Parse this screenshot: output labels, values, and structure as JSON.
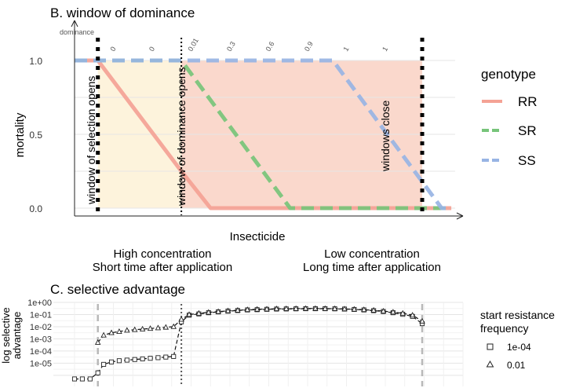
{
  "chart_data": [
    {
      "panel_title": "B. window of dominance",
      "type": "line",
      "x": [
        0,
        0.06,
        0.175,
        0.25,
        0.37,
        0.49,
        0.61,
        0.73,
        0.85,
        0.97
      ],
      "xlabel": "Insecticide",
      "ylabel": "mortality",
      "xlim": [
        0,
        1
      ],
      "ylim": [
        0,
        1
      ],
      "x_ticks_shown": false,
      "y_ticks": [
        "0.0",
        "0.5",
        "1.0"
      ],
      "y_tick_values": [
        0,
        0.5,
        1
      ],
      "x_annotations": [
        {
          "text": "High concentration",
          "x": 0.23,
          "line": 1
        },
        {
          "text": "Short time after application",
          "x": 0.23,
          "line": 2
        },
        {
          "text": "Low concentration",
          "x": 0.78,
          "line": 1
        },
        {
          "text": "Long time after application",
          "x": 0.78,
          "line": 2
        }
      ],
      "dominance_label": "dominance",
      "dominance_values": [
        {
          "x": 0.11,
          "text": "0"
        },
        {
          "x": 0.21,
          "text": "0"
        },
        {
          "x": 0.31,
          "text": "0.01"
        },
        {
          "x": 0.41,
          "text": "0.3"
        },
        {
          "x": 0.51,
          "text": "0.6"
        },
        {
          "x": 0.61,
          "text": "0.9"
        },
        {
          "x": 0.71,
          "text": "1"
        },
        {
          "x": 0.81,
          "text": "1"
        }
      ],
      "window_lines": [
        {
          "x": 0.06,
          "style": "dashed-thick",
          "label": "window of selection opens"
        },
        {
          "x": 0.275,
          "style": "dotted",
          "label": "window of dominance opens"
        },
        {
          "x": 0.895,
          "style": "dashed-thick",
          "label": "windows close"
        }
      ],
      "shaded_regions": [
        {
          "x0": 0.06,
          "x1": 0.275,
          "color": "#fdf3dc"
        },
        {
          "x0": 0.275,
          "x1": 0.895,
          "color": "#fad8cc"
        }
      ],
      "legend_title": "genotype",
      "legend_position": "right",
      "series": [
        {
          "name": "RR",
          "color": "#f4a295",
          "dash": "solid",
          "points": [
            [
              0.0,
              1.0
            ],
            [
              0.06,
              1.0
            ],
            [
              0.275,
              0.25
            ],
            [
              0.35,
              0.0
            ],
            [
              0.97,
              0.0
            ]
          ]
        },
        {
          "name": "SR",
          "color": "#77c47a",
          "dash": "dashed",
          "points": [
            [
              0.0,
              1.0
            ],
            [
              0.275,
              1.0
            ],
            [
              0.555,
              0.0
            ],
            [
              0.97,
              0.0
            ]
          ]
        },
        {
          "name": "SS",
          "color": "#98b4e4",
          "dash": "dashed",
          "points": [
            [
              0.0,
              1.0
            ],
            [
              0.665,
              1.0
            ],
            [
              0.945,
              0.0
            ],
            [
              0.97,
              0.0
            ]
          ]
        }
      ]
    },
    {
      "panel_title": "C. selective advantage",
      "type": "scatter",
      "ylabel_line1": "log selective",
      "ylabel_line2": "advantage",
      "xlim": [
        0,
        1
      ],
      "y_scale": "log10",
      "ylim_log10": [
        -6,
        0
      ],
      "y_ticks": [
        "1e+00",
        "1e-01",
        "1e-02",
        "1e-03",
        "1e-04",
        "1e-05"
      ],
      "y_tick_log10": [
        0,
        -1,
        -2,
        -3,
        -4,
        -5
      ],
      "window_lines": [
        {
          "x": 0.06,
          "style": "dashed-grey"
        },
        {
          "x": 0.275,
          "style": "dotted"
        },
        {
          "x": 0.895,
          "style": "dashed-grey"
        }
      ],
      "legend_title_line1": "start resistance",
      "legend_title_line2": "frequency",
      "legend_position": "right",
      "series": [
        {
          "name": "1e-04",
          "marker": "square",
          "x": [
            0.0,
            0.02,
            0.04,
            0.06,
            0.075,
            0.095,
            0.115,
            0.135,
            0.155,
            0.175,
            0.195,
            0.215,
            0.235,
            0.255,
            0.275,
            0.295,
            0.32,
            0.345,
            0.37,
            0.395,
            0.42,
            0.445,
            0.47,
            0.495,
            0.52,
            0.545,
            0.57,
            0.595,
            0.62,
            0.645,
            0.67,
            0.695,
            0.72,
            0.745,
            0.77,
            0.795,
            0.82,
            0.845,
            0.87,
            0.895
          ],
          "log10y": [
            -6.3,
            -6.3,
            -6.3,
            -5.8,
            -5.1,
            -4.9,
            -4.8,
            -4.75,
            -4.7,
            -4.65,
            -4.6,
            -4.55,
            -4.5,
            -4.45,
            -1.6,
            -1.05,
            -0.95,
            -0.85,
            -0.78,
            -0.72,
            -0.67,
            -0.62,
            -0.6,
            -0.57,
            -0.55,
            -0.54,
            -0.53,
            -0.52,
            -0.52,
            -0.52,
            -0.53,
            -0.55,
            -0.58,
            -0.62,
            -0.68,
            -0.75,
            -0.85,
            -0.98,
            -1.15,
            -1.75
          ]
        },
        {
          "name": "0.01",
          "marker": "triangle",
          "x": [
            0.06,
            0.075,
            0.095,
            0.115,
            0.135,
            0.155,
            0.175,
            0.195,
            0.215,
            0.235,
            0.255,
            0.275,
            0.295,
            0.32,
            0.345,
            0.37,
            0.395,
            0.42,
            0.445,
            0.47,
            0.495,
            0.52,
            0.545,
            0.57,
            0.595,
            0.62,
            0.645,
            0.67,
            0.695,
            0.72,
            0.745,
            0.77,
            0.795,
            0.82,
            0.845,
            0.87,
            0.895
          ],
          "log10y": [
            -3.3,
            -2.7,
            -2.5,
            -2.4,
            -2.3,
            -2.25,
            -2.2,
            -2.15,
            -2.1,
            -2.05,
            -2.0,
            -1.4,
            -1.0,
            -0.9,
            -0.82,
            -0.76,
            -0.7,
            -0.65,
            -0.6,
            -0.57,
            -0.55,
            -0.53,
            -0.52,
            -0.51,
            -0.5,
            -0.5,
            -0.51,
            -0.52,
            -0.54,
            -0.57,
            -0.6,
            -0.65,
            -0.72,
            -0.8,
            -0.9,
            -1.05,
            -1.55
          ]
        }
      ]
    }
  ]
}
